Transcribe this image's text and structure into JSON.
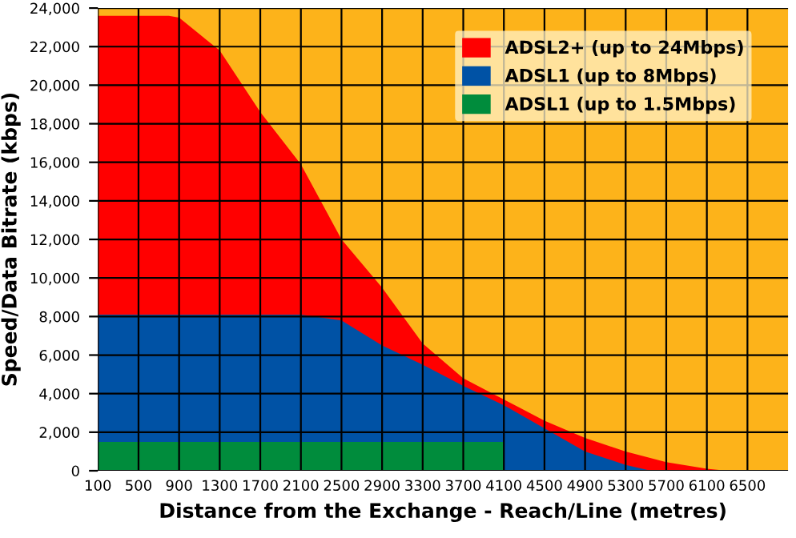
{
  "chart_data": {
    "type": "area",
    "xlabel": "Distance from the Exchange - Reach/Line (metres)",
    "ylabel": "Speed/Data Bitrate (kbps)",
    "series": [
      {
        "name": "ADSL2+ (up to 24Mbps)",
        "color": "#ff0000",
        "x": [
          100,
          800,
          900,
          1300,
          1700,
          2100,
          2500,
          2900,
          3300,
          3700,
          4100,
          4500,
          4900,
          5300,
          5700,
          6100,
          6300
        ],
        "values": [
          23600,
          23600,
          23500,
          21800,
          18600,
          15900,
          12000,
          9500,
          6600,
          4800,
          3700,
          2600,
          1700,
          1000,
          450,
          100,
          0
        ]
      },
      {
        "name": "ADSL1 (up to 8Mbps)",
        "color": "#0052a5",
        "x": [
          100,
          2100,
          2500,
          2900,
          3300,
          3700,
          4100,
          4500,
          4900,
          5300,
          5550
        ],
        "values": [
          8100,
          8100,
          7800,
          6500,
          5500,
          4400,
          3400,
          2200,
          1000,
          300,
          0
        ]
      },
      {
        "name": "ADSL1 (up to 1.5Mbps)",
        "color": "#008c3c",
        "x": [
          100,
          4100,
          4101
        ],
        "values": [
          1500,
          1500,
          0
        ]
      }
    ],
    "xlim": [
      100,
      6900
    ],
    "xticks": [
      100,
      500,
      900,
      1300,
      1700,
      2100,
      2500,
      2900,
      3300,
      3700,
      4100,
      4500,
      4900,
      5300,
      5700,
      6100,
      6500
    ],
    "ylim": [
      0,
      24000
    ],
    "yticks": [
      0,
      {
        "value": 2000,
        "label": "2,000"
      },
      {
        "value": 4000,
        "label": "4,000"
      },
      {
        "value": 6000,
        "label": "6,000"
      },
      {
        "value": 8000,
        "label": "8,000"
      },
      {
        "value": 10000,
        "label": "10,000"
      },
      {
        "value": 12000,
        "label": "12,000"
      },
      {
        "value": 14000,
        "label": "14,000"
      },
      {
        "value": 16000,
        "label": "16,000"
      },
      {
        "value": 18000,
        "label": "18,000"
      },
      {
        "value": 20000,
        "label": "20,000"
      },
      {
        "value": 22000,
        "label": "22,000"
      },
      {
        "value": 24000,
        "label": "24,000"
      }
    ],
    "grid": true,
    "legend": "top right"
  }
}
